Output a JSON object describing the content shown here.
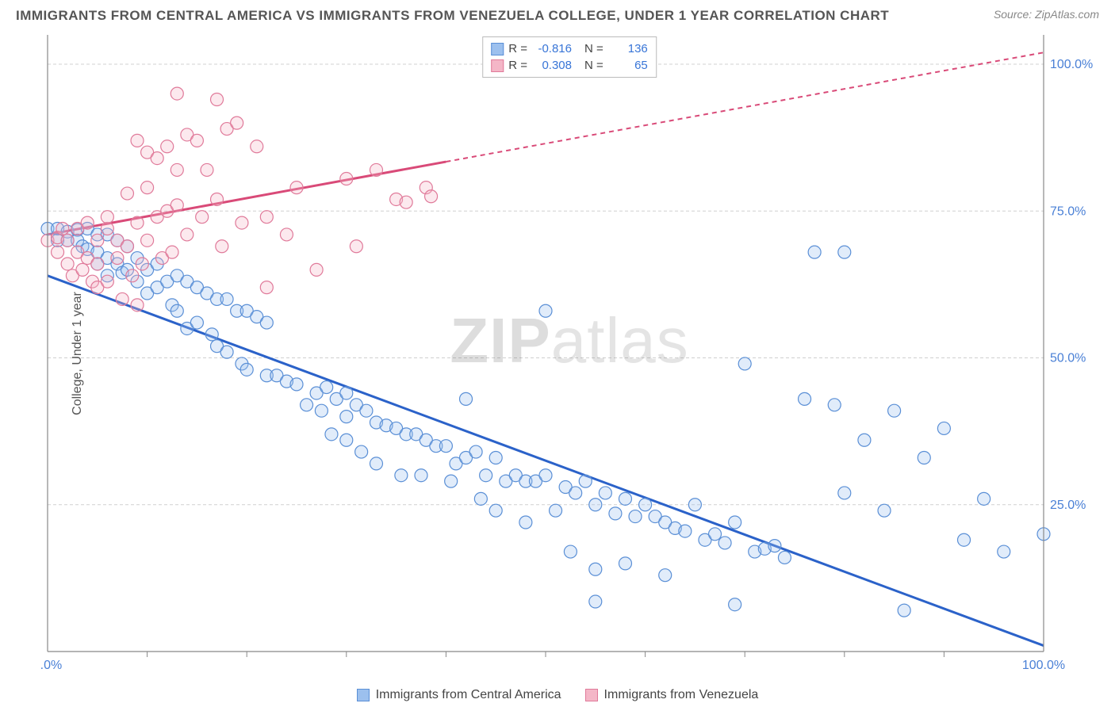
{
  "title": "IMMIGRANTS FROM CENTRAL AMERICA VS IMMIGRANTS FROM VENEZUELA COLLEGE, UNDER 1 YEAR CORRELATION CHART",
  "source_label": "Source: ",
  "source_name": "ZipAtlas.com",
  "ylabel": "College, Under 1 year",
  "watermark_a": "ZIP",
  "watermark_b": "atlas",
  "chart": {
    "type": "scatter",
    "background_color": "#ffffff",
    "grid_color": "#d0d0d0",
    "axis_color": "#888888",
    "tick_label_color": "#4a80d6",
    "xlim": [
      0,
      100
    ],
    "ylim": [
      0,
      105
    ],
    "x_ticks": [
      0,
      100
    ],
    "x_tick_labels": [
      "0.0%",
      "100.0%"
    ],
    "x_minor_ticks": [
      10,
      20,
      30,
      40,
      50,
      60,
      70,
      80,
      90
    ],
    "y_ticks": [
      25,
      50,
      75,
      100
    ],
    "y_tick_labels": [
      "25.0%",
      "50.0%",
      "75.0%",
      "100.0%"
    ],
    "marker_radius": 8,
    "marker_stroke_width": 1.2,
    "marker_fill_opacity": 0.3,
    "series": [
      {
        "name": "Immigrants from Central America",
        "color_fill": "#9cc0ee",
        "color_stroke": "#5a8fd6",
        "trend_color": "#2b62c9",
        "R": "-0.816",
        "N": "136",
        "trend": {
          "x1": 0,
          "y1": 64,
          "x2": 100,
          "y2": 1,
          "dash_from_x": null
        },
        "points": [
          [
            0,
            72
          ],
          [
            1,
            72
          ],
          [
            1,
            70
          ],
          [
            2,
            71.5
          ],
          [
            2,
            70
          ],
          [
            3,
            71.8
          ],
          [
            3,
            70
          ],
          [
            3.5,
            69
          ],
          [
            4,
            72
          ],
          [
            4,
            68.5
          ],
          [
            5,
            71
          ],
          [
            5,
            68
          ],
          [
            5,
            66
          ],
          [
            6,
            71
          ],
          [
            6,
            67
          ],
          [
            6,
            64
          ],
          [
            7,
            70
          ],
          [
            7,
            66
          ],
          [
            7.5,
            64.5
          ],
          [
            8,
            69
          ],
          [
            8,
            65
          ],
          [
            9,
            67
          ],
          [
            9,
            63
          ],
          [
            10,
            65
          ],
          [
            10,
            61
          ],
          [
            11,
            66
          ],
          [
            11,
            62
          ],
          [
            12,
            63
          ],
          [
            12.5,
            59
          ],
          [
            13,
            64
          ],
          [
            13,
            58
          ],
          [
            14,
            63
          ],
          [
            14,
            55
          ],
          [
            15,
            62
          ],
          [
            15,
            56
          ],
          [
            16,
            61
          ],
          [
            16.5,
            54
          ],
          [
            17,
            60
          ],
          [
            17,
            52
          ],
          [
            18,
            60
          ],
          [
            18,
            51
          ],
          [
            19,
            58
          ],
          [
            19.5,
            49
          ],
          [
            20,
            58
          ],
          [
            20,
            48
          ],
          [
            21,
            57
          ],
          [
            22,
            56
          ],
          [
            22,
            47
          ],
          [
            23,
            47
          ],
          [
            24,
            46
          ],
          [
            25,
            45.5
          ],
          [
            26,
            42
          ],
          [
            27,
            44
          ],
          [
            27.5,
            41
          ],
          [
            28,
            45
          ],
          [
            28.5,
            37
          ],
          [
            29,
            43
          ],
          [
            30,
            40
          ],
          [
            30,
            36
          ],
          [
            31,
            42
          ],
          [
            31.5,
            34
          ],
          [
            32,
            41
          ],
          [
            33,
            39
          ],
          [
            33,
            32
          ],
          [
            34,
            38.5
          ],
          [
            35,
            38
          ],
          [
            35.5,
            30
          ],
          [
            36,
            37
          ],
          [
            37,
            37
          ],
          [
            37.5,
            30
          ],
          [
            38,
            36
          ],
          [
            39,
            35
          ],
          [
            40,
            35
          ],
          [
            40.5,
            29
          ],
          [
            41,
            32
          ],
          [
            42,
            33
          ],
          [
            43,
            34
          ],
          [
            43.5,
            26
          ],
          [
            44,
            30
          ],
          [
            45,
            33
          ],
          [
            45,
            24
          ],
          [
            46,
            29
          ],
          [
            47,
            30
          ],
          [
            48,
            29
          ],
          [
            48,
            22
          ],
          [
            49,
            29
          ],
          [
            50,
            30
          ],
          [
            50,
            58
          ],
          [
            51,
            24
          ],
          [
            52,
            28
          ],
          [
            52.5,
            17
          ],
          [
            53,
            27
          ],
          [
            54,
            29
          ],
          [
            55,
            25
          ],
          [
            55,
            14
          ],
          [
            56,
            27
          ],
          [
            57,
            23.5
          ],
          [
            58,
            26
          ],
          [
            58,
            15
          ],
          [
            59,
            23
          ],
          [
            60,
            25
          ],
          [
            61,
            23
          ],
          [
            62,
            22
          ],
          [
            62,
            13
          ],
          [
            63,
            21
          ],
          [
            64,
            20.5
          ],
          [
            65,
            25
          ],
          [
            66,
            19
          ],
          [
            67,
            20
          ],
          [
            68,
            18.5
          ],
          [
            69,
            22
          ],
          [
            70,
            49
          ],
          [
            71,
            17
          ],
          [
            72,
            17.5
          ],
          [
            73,
            18
          ],
          [
            74,
            16
          ],
          [
            76,
            43
          ],
          [
            77,
            68
          ],
          [
            79,
            42
          ],
          [
            80,
            68
          ],
          [
            80,
            27
          ],
          [
            82,
            36
          ],
          [
            84,
            24
          ],
          [
            85,
            41
          ],
          [
            86,
            7
          ],
          [
            88,
            33
          ],
          [
            90,
            38
          ],
          [
            92,
            19
          ],
          [
            94,
            26
          ],
          [
            96,
            17
          ],
          [
            100,
            20
          ],
          [
            69,
            8
          ],
          [
            55,
            8.5
          ],
          [
            30,
            44
          ],
          [
            42,
            43
          ]
        ]
      },
      {
        "name": "Immigrants from Venezuela",
        "color_fill": "#f4b6c7",
        "color_stroke": "#e07a9a",
        "trend_color": "#d94a78",
        "R": "0.308",
        "N": "65",
        "trend": {
          "x1": 0,
          "y1": 71,
          "x2": 100,
          "y2": 102,
          "dash_from_x": 40
        },
        "points": [
          [
            0,
            70
          ],
          [
            1,
            70.5
          ],
          [
            1,
            68
          ],
          [
            1.5,
            72
          ],
          [
            2,
            66
          ],
          [
            2,
            70
          ],
          [
            2.5,
            64
          ],
          [
            3,
            72
          ],
          [
            3,
            68
          ],
          [
            3.5,
            65
          ],
          [
            4,
            73
          ],
          [
            4,
            67
          ],
          [
            4.5,
            63
          ],
          [
            5,
            70
          ],
          [
            5,
            66
          ],
          [
            5,
            62
          ],
          [
            6,
            72
          ],
          [
            6,
            74
          ],
          [
            6,
            63
          ],
          [
            7,
            70
          ],
          [
            7,
            67
          ],
          [
            7.5,
            60
          ],
          [
            8,
            78
          ],
          [
            8,
            69
          ],
          [
            8.5,
            64
          ],
          [
            9,
            87
          ],
          [
            9,
            73
          ],
          [
            9.5,
            66
          ],
          [
            10,
            85
          ],
          [
            10,
            79
          ],
          [
            10,
            70
          ],
          [
            11,
            84
          ],
          [
            11,
            74
          ],
          [
            11.5,
            67
          ],
          [
            12,
            86
          ],
          [
            12,
            75
          ],
          [
            12.5,
            68
          ],
          [
            13,
            82
          ],
          [
            13,
            76
          ],
          [
            14,
            88
          ],
          [
            14,
            71
          ],
          [
            15,
            87
          ],
          [
            15.5,
            74
          ],
          [
            16,
            82
          ],
          [
            17,
            94
          ],
          [
            17,
            77
          ],
          [
            17.5,
            69
          ],
          [
            18,
            89
          ],
          [
            19,
            90
          ],
          [
            19.5,
            73
          ],
          [
            21,
            86
          ],
          [
            22,
            74
          ],
          [
            22,
            62
          ],
          [
            24,
            71
          ],
          [
            25,
            79
          ],
          [
            27,
            65
          ],
          [
            30,
            80.5
          ],
          [
            31,
            69
          ],
          [
            33,
            82
          ],
          [
            35,
            77
          ],
          [
            36,
            76.5
          ],
          [
            38,
            79
          ],
          [
            38.5,
            77.5
          ],
          [
            13,
            95
          ],
          [
            9,
            59
          ]
        ]
      }
    ]
  },
  "legend_top": {
    "r_label": "R =",
    "n_label": "N ="
  }
}
